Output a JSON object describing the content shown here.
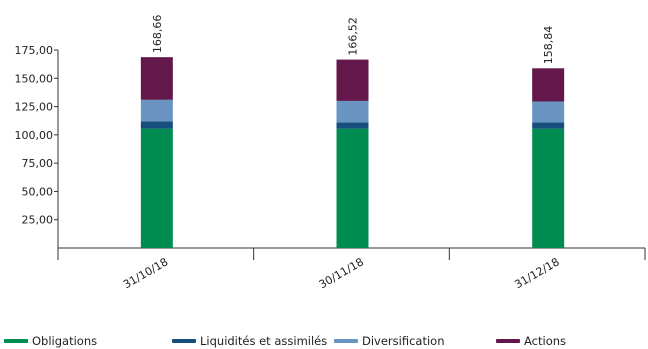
{
  "chart_data": {
    "type": "bar",
    "stacked": true,
    "title": "",
    "xlabel": "",
    "ylabel": "",
    "ylim": [
      0,
      175
    ],
    "yticks": [
      "25,00",
      "50,00",
      "75,00",
      "100,00",
      "125,00",
      "150,00",
      "175,00"
    ],
    "ytick_values": [
      25,
      50,
      75,
      100,
      125,
      150,
      175
    ],
    "categories": [
      "31/10/18",
      "30/11/18",
      "31/12/18"
    ],
    "series": [
      {
        "name": "Obligations",
        "color": "#008c50",
        "values": [
          105.5,
          105.5,
          105.5
        ]
      },
      {
        "name": "Liquidités et assimilés",
        "color": "#164f7e",
        "values": [
          6.5,
          5.5,
          5.5
        ]
      },
      {
        "name": "Diversification",
        "color": "#6a95c3",
        "values": [
          19,
          19,
          18.5
        ]
      },
      {
        "name": "Actions",
        "color": "#63174a",
        "values": [
          37.66,
          36.52,
          29.34
        ]
      }
    ],
    "totals": [
      "168,66",
      "166,52",
      "158,84"
    ],
    "total_values": [
      168.66,
      166.52,
      158.84
    ],
    "grid": false,
    "legend": "bottom"
  }
}
